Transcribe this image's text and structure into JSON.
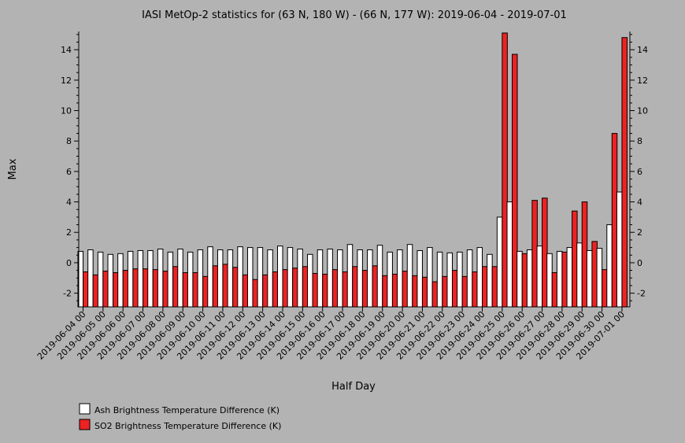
{
  "chart_data": {
    "type": "bar",
    "title": "IASI MetOp-2 statistics for (63 N, 180 W) - (66 N, 177 W): 2019-06-04 - 2019-07-01",
    "xlabel": "Half Day",
    "ylabel": "Max",
    "ylim": [
      -2.9,
      15.2
    ],
    "yticks": [
      -2,
      0,
      2,
      4,
      6,
      8,
      10,
      12,
      14
    ],
    "x_tick_labels": [
      "2019-06-04 00",
      "2019-06-05 00",
      "2019-06-06 00",
      "2019-06-07 00",
      "2019-06-08 00",
      "2019-06-09 00",
      "2019-06-10 00",
      "2019-06-11 00",
      "2019-06-12 00",
      "2019-06-13 00",
      "2019-06-14 00",
      "2019-06-15 00",
      "2019-06-16 00",
      "2019-06-17 00",
      "2019-06-18 00",
      "2019-06-19 00",
      "2019-06-20 00",
      "2019-06-21 00",
      "2019-06-22 00",
      "2019-06-23 00",
      "2019-06-24 00",
      "2019-06-25 00",
      "2019-06-26 00",
      "2019-06-27 00",
      "2019-06-28 00",
      "2019-06-29 00",
      "2019-06-30 00",
      "2019-07-01 00"
    ],
    "legend_position": "bottom-left",
    "colors": {
      "ash": "#ffffff",
      "so2": "#ee2222",
      "background": "#b3b3b3"
    },
    "series": [
      {
        "name": "Ash Brightness Temperature Difference (K)",
        "values": [
          0.75,
          0.85,
          0.7,
          0.55,
          0.6,
          0.75,
          0.8,
          0.8,
          0.9,
          0.7,
          0.9,
          0.7,
          0.85,
          1.05,
          0.85,
          0.85,
          1.05,
          1.0,
          1.0,
          0.85,
          1.1,
          1.0,
          0.9,
          0.55,
          0.85,
          0.9,
          0.85,
          1.2,
          0.85,
          0.85,
          1.15,
          0.7,
          0.85,
          1.2,
          0.8,
          1.0,
          0.7,
          0.65,
          0.7,
          0.85,
          1.0,
          0.55,
          3.0,
          4.0,
          0.75,
          0.85,
          1.1,
          0.6,
          0.75,
          1.0,
          1.3,
          0.8,
          0.95,
          2.5,
          4.65
        ]
      },
      {
        "name": "SO2 Brightness Temperature Difference (K)",
        "values": [
          -0.6,
          -0.8,
          -0.55,
          -0.65,
          -0.5,
          -0.4,
          -0.4,
          -0.45,
          -0.55,
          -0.25,
          -0.65,
          -0.65,
          -0.9,
          -0.2,
          -0.1,
          -0.3,
          -0.8,
          -1.1,
          -0.8,
          -0.6,
          -0.45,
          -0.35,
          -0.25,
          -0.7,
          -0.75,
          -0.45,
          -0.6,
          -0.25,
          -0.5,
          -0.2,
          -0.85,
          -0.75,
          -0.55,
          -0.85,
          -0.95,
          -1.25,
          -0.9,
          -0.5,
          -0.9,
          -0.6,
          -0.25,
          -0.25,
          15.1,
          13.7,
          0.6,
          4.1,
          4.25,
          -0.65,
          0.7,
          3.4,
          4.0,
          1.4,
          -0.45,
          8.5,
          14.8
        ]
      }
    ]
  }
}
